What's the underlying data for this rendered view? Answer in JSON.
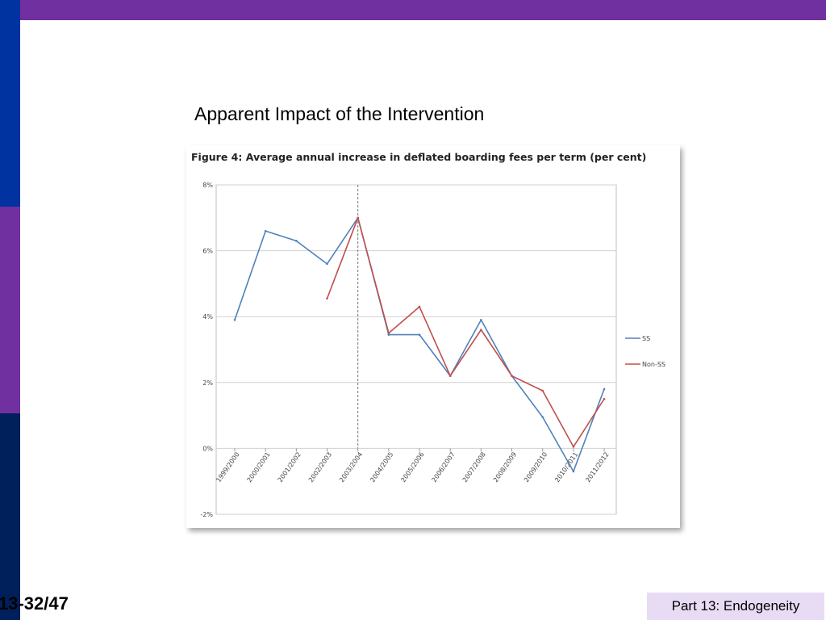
{
  "slide": {
    "title": "Apparent Impact of the Intervention",
    "page_number": "13-32/47",
    "footer": "Part 13: Endogeneity"
  },
  "colors": {
    "top_bar": "#7030a0",
    "sidebar_top": "#0033a0",
    "sidebar_mid": "#7030a0",
    "sidebar_bottom": "#00205b",
    "footer_bg": "#e8dcf4",
    "series_ss": "#4f81bd",
    "series_nonss": "#c0504d"
  },
  "chart_data": {
    "type": "line",
    "title": "Figure 4: Average annual increase in deflated boarding fees per term (per cent)",
    "x": [
      "1999/2000",
      "2000/2001",
      "2001/2002",
      "2002/2003",
      "2003/2004",
      "2004/2005",
      "2005/2006",
      "2006/2007",
      "2007/2008",
      "2008/2009",
      "2009/2010",
      "2010/2011",
      "2011/2012"
    ],
    "series": [
      {
        "name": "SS",
        "color": "#4f81bd",
        "values": [
          3.9,
          6.6,
          6.3,
          5.6,
          7.0,
          3.45,
          3.45,
          2.2,
          3.9,
          2.2,
          0.95,
          -0.7,
          1.8
        ]
      },
      {
        "name": "Non-SS",
        "color": "#c0504d",
        "values": [
          null,
          null,
          null,
          4.55,
          7.0,
          3.5,
          4.3,
          2.2,
          3.6,
          2.2,
          1.75,
          0.05,
          1.5
        ]
      }
    ],
    "y_ticks": [
      "8%",
      "6%",
      "4%",
      "2%",
      "0%",
      "-2%"
    ],
    "ylim": [
      -2,
      8
    ],
    "xlabel": "",
    "ylabel": "",
    "grid": true,
    "legend_position": "right",
    "reference_line": {
      "x": "2003/2004",
      "style": "dashed"
    }
  }
}
